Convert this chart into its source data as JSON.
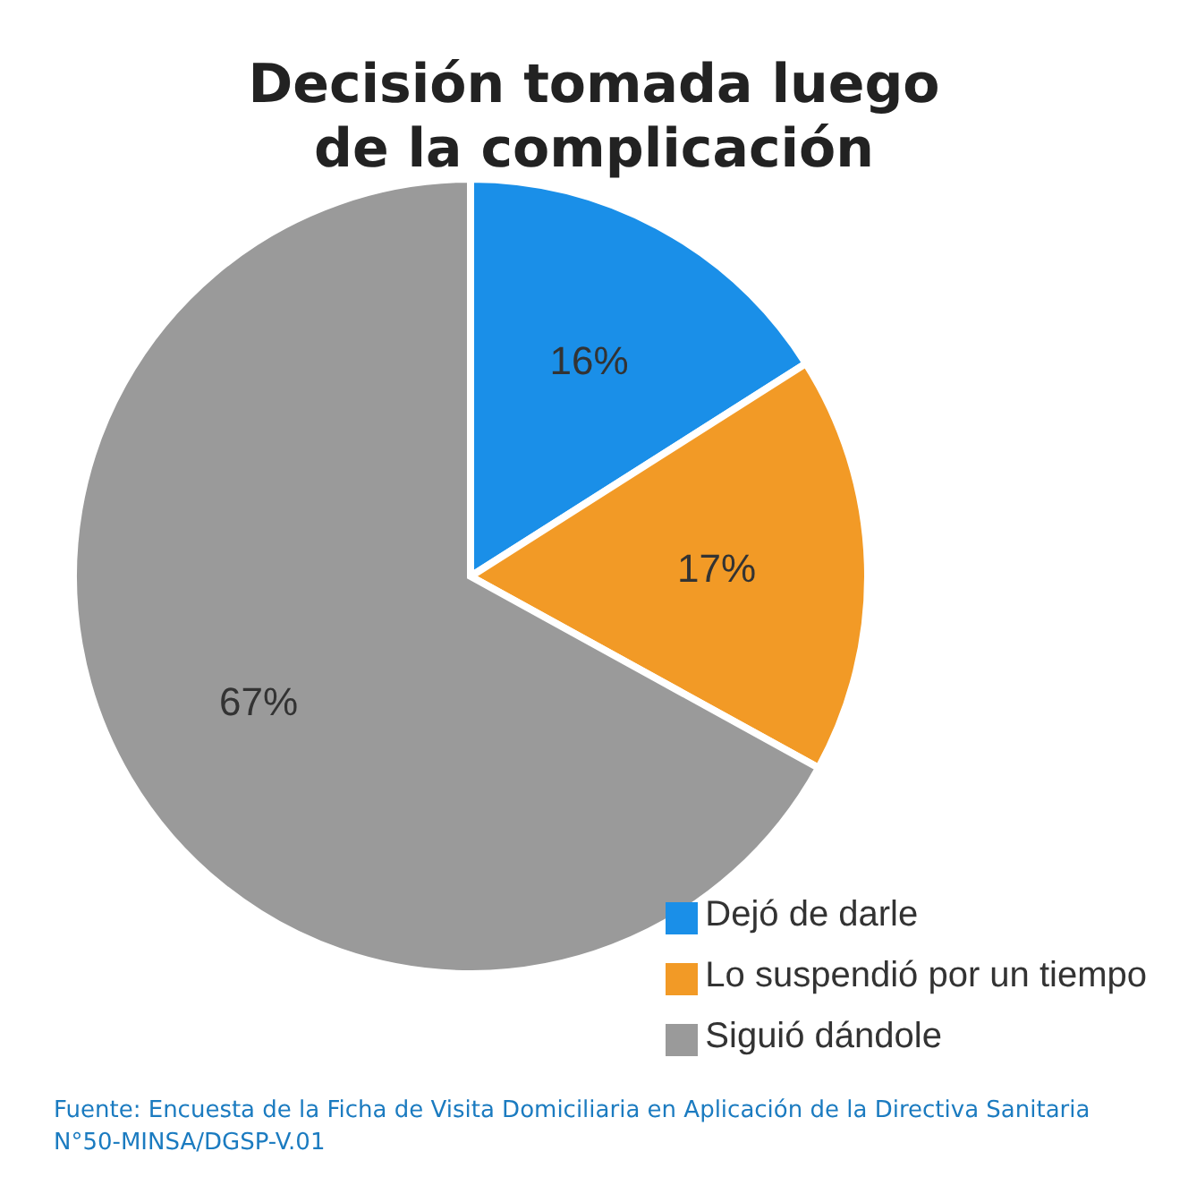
{
  "chart_data": {
    "type": "pie",
    "title": "Decisión tomada luego de la complicación",
    "categories": [
      "Dejó de darle",
      "Lo suspendió por un tiempo",
      "Siguió dándole"
    ],
    "values": [
      16,
      17,
      67
    ],
    "colors": [
      "#1a8fe8",
      "#f29a26",
      "#9a9a9a"
    ],
    "value_labels": [
      "16%",
      "17%",
      "67%"
    ],
    "legend": "bottom right",
    "annotations": [
      "Fuente: Encuesta de la Ficha de Visita Domiciliaria en Aplicación de la Directiva Sanitaria N°50-MINSA/DGSP-V.01"
    ]
  }
}
